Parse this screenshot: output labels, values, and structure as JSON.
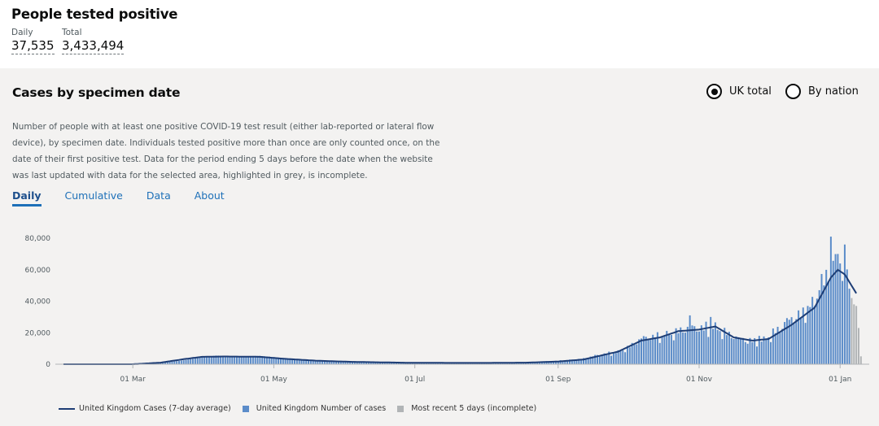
{
  "header": {
    "title": "People tested positive",
    "metrics": [
      {
        "label": "Daily",
        "value": "37,535"
      },
      {
        "label": "Total",
        "value": "3,433,494"
      }
    ]
  },
  "panel": {
    "title": "Cases by specimen date",
    "radios": [
      {
        "label": "UK total",
        "checked": true
      },
      {
        "label": "By nation",
        "checked": false
      }
    ],
    "description": "Number of people with at least one positive COVID-19 test result (either lab-reported or lateral flow device), by specimen date. Individuals tested positive more than once are only counted once, on the date of their first positive test. Data for the period ending 5 days before the date when the website was last updated with data for the selected area, highlighted in grey, is incomplete.",
    "tabs": [
      {
        "label": "Daily",
        "active": true
      },
      {
        "label": "Cumulative",
        "active": false
      },
      {
        "label": "Data",
        "active": false
      },
      {
        "label": "About",
        "active": false
      }
    ]
  },
  "colors": {
    "bar": "#5b8cc9",
    "line": "#1d3d75",
    "incomplete": "#b1b4b6",
    "tab_link": "#1d70b8"
  },
  "chart_data": {
    "type": "bar",
    "y_ticks": [
      "80,000",
      "60,000",
      "40,000",
      "20,000",
      "0"
    ],
    "y_tick_values": [
      80000,
      60000,
      40000,
      20000,
      0
    ],
    "ylim": [
      0,
      80000
    ],
    "x_ticks": [
      "01 Mar",
      "01 May",
      "01 Jul",
      "01 Sep",
      "01 Nov",
      "01 Jan"
    ],
    "x_tick_days": [
      30,
      91,
      152,
      214,
      275,
      336
    ],
    "x_start": "2020-01-30",
    "x_end": "2021-01-10",
    "grid": false,
    "legend_position": "bottom",
    "legend": [
      "United Kingdom Cases (7-day average)",
      "United Kingdom Number of cases",
      "Most recent 5 days (incomplete)"
    ],
    "series_daily_keyframes": [
      [
        0,
        0
      ],
      [
        30,
        0
      ],
      [
        42,
        700
      ],
      [
        52,
        2500
      ],
      [
        60,
        4500
      ],
      [
        66,
        5500
      ],
      [
        75,
        5000
      ],
      [
        85,
        5300
      ],
      [
        95,
        4000
      ],
      [
        110,
        2500
      ],
      [
        125,
        1600
      ],
      [
        150,
        900
      ],
      [
        180,
        900
      ],
      [
        200,
        1100
      ],
      [
        214,
        2000
      ],
      [
        225,
        3500
      ],
      [
        240,
        8000
      ],
      [
        250,
        15000
      ],
      [
        258,
        18000
      ],
      [
        266,
        21000
      ],
      [
        275,
        22000
      ],
      [
        282,
        24000
      ],
      [
        292,
        15000
      ],
      [
        302,
        15000
      ],
      [
        315,
        27000
      ],
      [
        325,
        40000
      ],
      [
        332,
        60000
      ],
      [
        338,
        57000
      ],
      [
        343,
        45000
      ],
      [
        346,
        44000
      ]
    ],
    "series_7day_avg_keyframes": [
      [
        0,
        0
      ],
      [
        30,
        0
      ],
      [
        42,
        1000
      ],
      [
        52,
        3200
      ],
      [
        60,
        4700
      ],
      [
        70,
        4900
      ],
      [
        85,
        4700
      ],
      [
        95,
        3500
      ],
      [
        110,
        2200
      ],
      [
        125,
        1500
      ],
      [
        150,
        900
      ],
      [
        180,
        800
      ],
      [
        200,
        1000
      ],
      [
        214,
        1700
      ],
      [
        225,
        3000
      ],
      [
        240,
        8000
      ],
      [
        250,
        15000
      ],
      [
        258,
        17000
      ],
      [
        266,
        21000
      ],
      [
        275,
        22000
      ],
      [
        282,
        24000
      ],
      [
        290,
        17000
      ],
      [
        298,
        15000
      ],
      [
        305,
        16000
      ],
      [
        315,
        25000
      ],
      [
        325,
        36000
      ],
      [
        332,
        55000
      ],
      [
        335,
        60000
      ],
      [
        338,
        57000
      ],
      [
        343,
        45000
      ]
    ],
    "daily_spikes": [
      [
        271,
        31000
      ],
      [
        278,
        27000
      ],
      [
        280,
        30000
      ],
      [
        332,
        81000
      ],
      [
        335,
        70000
      ],
      [
        338,
        76000
      ],
      [
        327,
        47000
      ],
      [
        322,
        37000
      ],
      [
        301,
        18000
      ],
      [
        296,
        13000
      ]
    ],
    "incomplete_days": [
      341,
      342,
      343,
      344,
      345
    ],
    "incomplete_values": [
      42000,
      38000,
      37000,
      23000,
      5000
    ]
  }
}
